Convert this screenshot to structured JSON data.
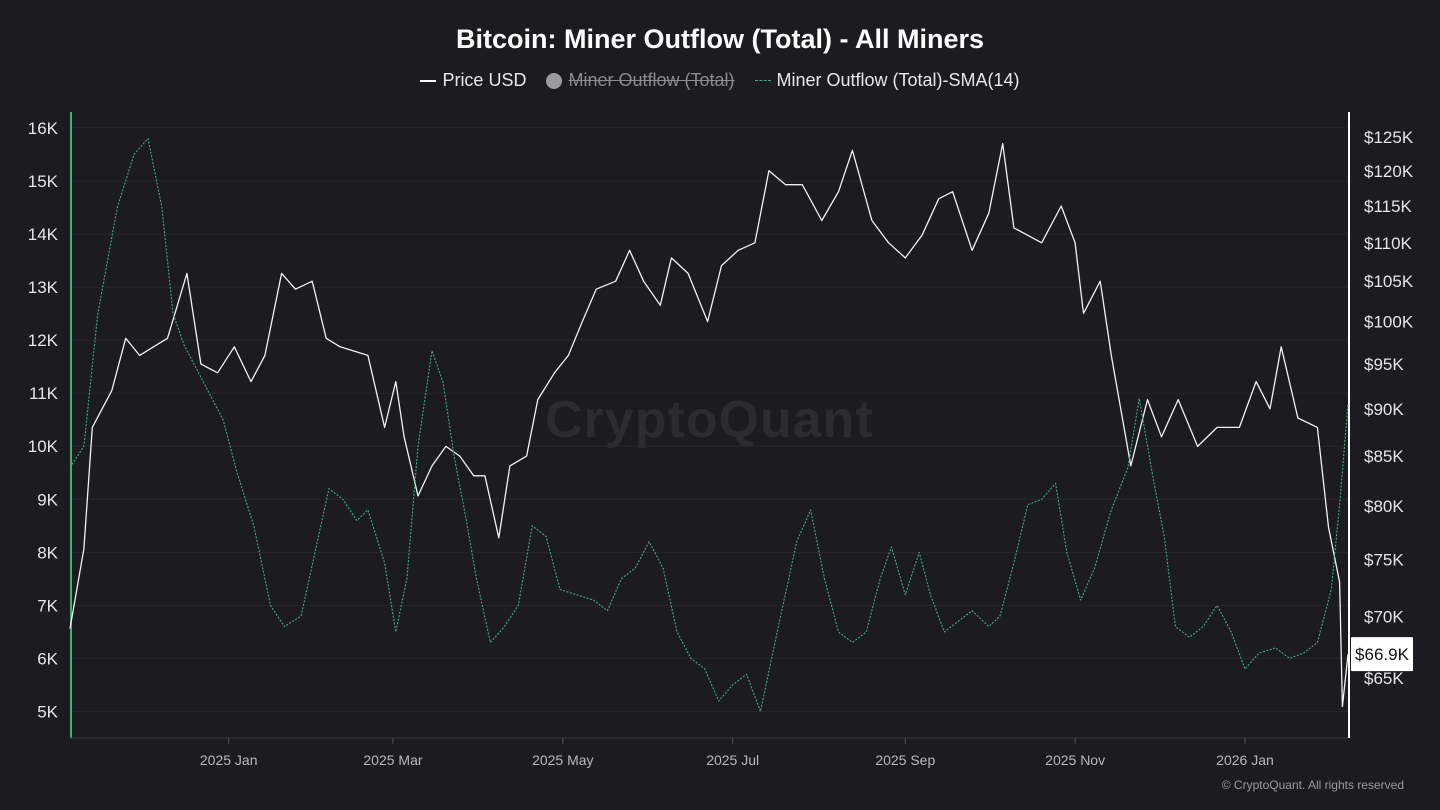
{
  "chart_data": {
    "type": "line",
    "title": "Bitcoin: Miner Outflow (Total) - All Miners",
    "legend": [
      {
        "name": "Price USD",
        "color": "#ffffff",
        "style": "solid",
        "hidden": false
      },
      {
        "name": "Miner Outflow (Total)",
        "color": "#9a9aa2",
        "style": "dot",
        "hidden": true
      },
      {
        "name": "Miner Outflow (Total)-SMA(14)",
        "color": "#3fb07a",
        "style": "dashed",
        "hidden": false
      }
    ],
    "legend_position": "top-center",
    "x_ticks": [
      "2025 Jan",
      "2025 Mar",
      "2025 May",
      "2025 Jul",
      "2025 Sep",
      "2025 Nov",
      "2026 Jan"
    ],
    "x_range": [
      "2024-11-05",
      "2026-02-07"
    ],
    "y_left": {
      "range": [
        4500,
        16300
      ],
      "ticks": [
        "5K",
        "6K",
        "7K",
        "8K",
        "9K",
        "10K",
        "11K",
        "12K",
        "13K",
        "14K",
        "15K",
        "16K"
      ]
    },
    "y_right": {
      "scale": "log",
      "ticks": [
        "$65K",
        "$70K",
        "$75K",
        "$80K",
        "$85K",
        "$90K",
        "$95K",
        "$100K",
        "$105K",
        "$110K",
        "$115K",
        "$120K",
        "$125K"
      ]
    },
    "last_price_label": "$66.9K",
    "grid": true,
    "series": [
      {
        "name": "Price USD",
        "axis": "right",
        "points": [
          [
            "2024-11-05",
            69000
          ],
          [
            "2024-11-10",
            76000
          ],
          [
            "2024-11-13",
            88000
          ],
          [
            "2024-11-20",
            92000
          ],
          [
            "2024-11-25",
            98000
          ],
          [
            "2024-11-30",
            96000
          ],
          [
            "2024-12-05",
            97000
          ],
          [
            "2024-12-10",
            98000
          ],
          [
            "2024-12-17",
            106000
          ],
          [
            "2024-12-22",
            95000
          ],
          [
            "2024-12-28",
            94000
          ],
          [
            "2025-01-03",
            97000
          ],
          [
            "2025-01-09",
            93000
          ],
          [
            "2025-01-14",
            96000
          ],
          [
            "2025-01-20",
            106000
          ],
          [
            "2025-01-25",
            104000
          ],
          [
            "2025-01-31",
            105000
          ],
          [
            "2025-02-05",
            98000
          ],
          [
            "2025-02-10",
            97000
          ],
          [
            "2025-02-20",
            96000
          ],
          [
            "2025-02-26",
            88000
          ],
          [
            "2025-03-02",
            93000
          ],
          [
            "2025-03-05",
            87000
          ],
          [
            "2025-03-10",
            81000
          ],
          [
            "2025-03-15",
            84000
          ],
          [
            "2025-03-20",
            86000
          ],
          [
            "2025-03-25",
            85000
          ],
          [
            "2025-03-30",
            83000
          ],
          [
            "2025-04-03",
            83000
          ],
          [
            "2025-04-08",
            77000
          ],
          [
            "2025-04-12",
            84000
          ],
          [
            "2025-04-18",
            85000
          ],
          [
            "2025-04-22",
            91000
          ],
          [
            "2025-04-28",
            94000
          ],
          [
            "2025-05-03",
            96000
          ],
          [
            "2025-05-08",
            100000
          ],
          [
            "2025-05-13",
            104000
          ],
          [
            "2025-05-20",
            105000
          ],
          [
            "2025-05-25",
            109000
          ],
          [
            "2025-05-30",
            105000
          ],
          [
            "2025-06-05",
            102000
          ],
          [
            "2025-06-09",
            108000
          ],
          [
            "2025-06-15",
            106000
          ],
          [
            "2025-06-22",
            100000
          ],
          [
            "2025-06-27",
            107000
          ],
          [
            "2025-07-03",
            109000
          ],
          [
            "2025-07-09",
            110000
          ],
          [
            "2025-07-14",
            120000
          ],
          [
            "2025-07-20",
            118000
          ],
          [
            "2025-07-26",
            118000
          ],
          [
            "2025-08-02",
            113000
          ],
          [
            "2025-08-08",
            117000
          ],
          [
            "2025-08-13",
            123000
          ],
          [
            "2025-08-20",
            113000
          ],
          [
            "2025-08-26",
            110000
          ],
          [
            "2025-09-01",
            108000
          ],
          [
            "2025-09-07",
            111000
          ],
          [
            "2025-09-13",
            116000
          ],
          [
            "2025-09-18",
            117000
          ],
          [
            "2025-09-25",
            109000
          ],
          [
            "2025-10-01",
            114000
          ],
          [
            "2025-10-06",
            124000
          ],
          [
            "2025-10-10",
            112000
          ],
          [
            "2025-10-15",
            111000
          ],
          [
            "2025-10-20",
            110000
          ],
          [
            "2025-10-27",
            115000
          ],
          [
            "2025-11-01",
            110000
          ],
          [
            "2025-11-04",
            101000
          ],
          [
            "2025-11-10",
            105000
          ],
          [
            "2025-11-14",
            96000
          ],
          [
            "2025-11-21",
            84000
          ],
          [
            "2025-11-27",
            91000
          ],
          [
            "2025-12-02",
            87000
          ],
          [
            "2025-12-08",
            91000
          ],
          [
            "2025-12-15",
            86000
          ],
          [
            "2025-12-22",
            88000
          ],
          [
            "2025-12-30",
            88000
          ],
          [
            "2026-01-05",
            93000
          ],
          [
            "2026-01-10",
            90000
          ],
          [
            "2026-01-14",
            97000
          ],
          [
            "2026-01-20",
            89000
          ],
          [
            "2026-01-27",
            88000
          ],
          [
            "2026-01-31",
            78000
          ],
          [
            "2026-02-04",
            73000
          ],
          [
            "2026-02-05",
            62800
          ],
          [
            "2026-02-07",
            66900
          ]
        ]
      },
      {
        "name": "Miner Outflow (Total)-SMA(14)",
        "axis": "left",
        "points": [
          [
            "2024-11-05",
            9600
          ],
          [
            "2024-11-10",
            10000
          ],
          [
            "2024-11-15",
            12500
          ],
          [
            "2024-11-22",
            14500
          ],
          [
            "2024-11-28",
            15500
          ],
          [
            "2024-12-03",
            15800
          ],
          [
            "2024-12-08",
            14500
          ],
          [
            "2024-12-12",
            12500
          ],
          [
            "2024-12-16",
            11900
          ],
          [
            "2024-12-20",
            11500
          ],
          [
            "2024-12-25",
            11000
          ],
          [
            "2024-12-30",
            10500
          ],
          [
            "2025-01-04",
            9500
          ],
          [
            "2025-01-10",
            8500
          ],
          [
            "2025-01-16",
            7000
          ],
          [
            "2025-01-21",
            6600
          ],
          [
            "2025-01-27",
            6800
          ],
          [
            "2025-02-01",
            8000
          ],
          [
            "2025-02-06",
            9200
          ],
          [
            "2025-02-11",
            9000
          ],
          [
            "2025-02-16",
            8600
          ],
          [
            "2025-02-20",
            8800
          ],
          [
            "2025-02-26",
            7800
          ],
          [
            "2025-03-02",
            6500
          ],
          [
            "2025-03-06",
            7500
          ],
          [
            "2025-03-10",
            10000
          ],
          [
            "2025-03-15",
            11800
          ],
          [
            "2025-03-19",
            11200
          ],
          [
            "2025-03-23",
            9800
          ],
          [
            "2025-03-27",
            8700
          ],
          [
            "2025-03-31",
            7500
          ],
          [
            "2025-04-05",
            6300
          ],
          [
            "2025-04-10",
            6600
          ],
          [
            "2025-04-15",
            7000
          ],
          [
            "2025-04-20",
            8500
          ],
          [
            "2025-04-25",
            8300
          ],
          [
            "2025-04-30",
            7300
          ],
          [
            "2025-05-06",
            7200
          ],
          [
            "2025-05-12",
            7100
          ],
          [
            "2025-05-17",
            6900
          ],
          [
            "2025-05-22",
            7500
          ],
          [
            "2025-05-27",
            7700
          ],
          [
            "2025-06-01",
            8200
          ],
          [
            "2025-06-06",
            7700
          ],
          [
            "2025-06-11",
            6500
          ],
          [
            "2025-06-16",
            6000
          ],
          [
            "2025-06-21",
            5800
          ],
          [
            "2025-06-26",
            5200
          ],
          [
            "2025-07-01",
            5500
          ],
          [
            "2025-07-06",
            5700
          ],
          [
            "2025-07-11",
            5000
          ],
          [
            "2025-07-17",
            6500
          ],
          [
            "2025-07-24",
            8200
          ],
          [
            "2025-07-29",
            8800
          ],
          [
            "2025-08-03",
            7500
          ],
          [
            "2025-08-08",
            6500
          ],
          [
            "2025-08-13",
            6300
          ],
          [
            "2025-08-18",
            6500
          ],
          [
            "2025-08-23",
            7500
          ],
          [
            "2025-08-27",
            8100
          ],
          [
            "2025-09-01",
            7200
          ],
          [
            "2025-09-06",
            8000
          ],
          [
            "2025-09-10",
            7200
          ],
          [
            "2025-09-15",
            6500
          ],
          [
            "2025-09-20",
            6700
          ],
          [
            "2025-09-25",
            6900
          ],
          [
            "2025-10-01",
            6600
          ],
          [
            "2025-10-05",
            6800
          ],
          [
            "2025-10-10",
            7800
          ],
          [
            "2025-10-15",
            8900
          ],
          [
            "2025-10-20",
            9000
          ],
          [
            "2025-10-25",
            9300
          ],
          [
            "2025-10-29",
            8000
          ],
          [
            "2025-11-03",
            7100
          ],
          [
            "2025-11-08",
            7700
          ],
          [
            "2025-11-14",
            8800
          ],
          [
            "2025-11-20",
            9600
          ],
          [
            "2025-11-24",
            10900
          ],
          [
            "2025-11-29",
            9400
          ],
          [
            "2025-12-03",
            8300
          ],
          [
            "2025-12-07",
            6600
          ],
          [
            "2025-12-12",
            6400
          ],
          [
            "2025-12-17",
            6600
          ],
          [
            "2025-12-22",
            7000
          ],
          [
            "2025-12-27",
            6500
          ],
          [
            "2026-01-01",
            5800
          ],
          [
            "2026-01-06",
            6100
          ],
          [
            "2026-01-12",
            6200
          ],
          [
            "2026-01-17",
            6000
          ],
          [
            "2026-01-22",
            6100
          ],
          [
            "2026-01-27",
            6300
          ],
          [
            "2026-02-01",
            7300
          ],
          [
            "2026-02-04",
            8900
          ],
          [
            "2026-02-07",
            10800
          ]
        ]
      }
    ]
  },
  "watermark": "CryptoQuant",
  "copyright": "© CryptoQuant. All rights reserved"
}
